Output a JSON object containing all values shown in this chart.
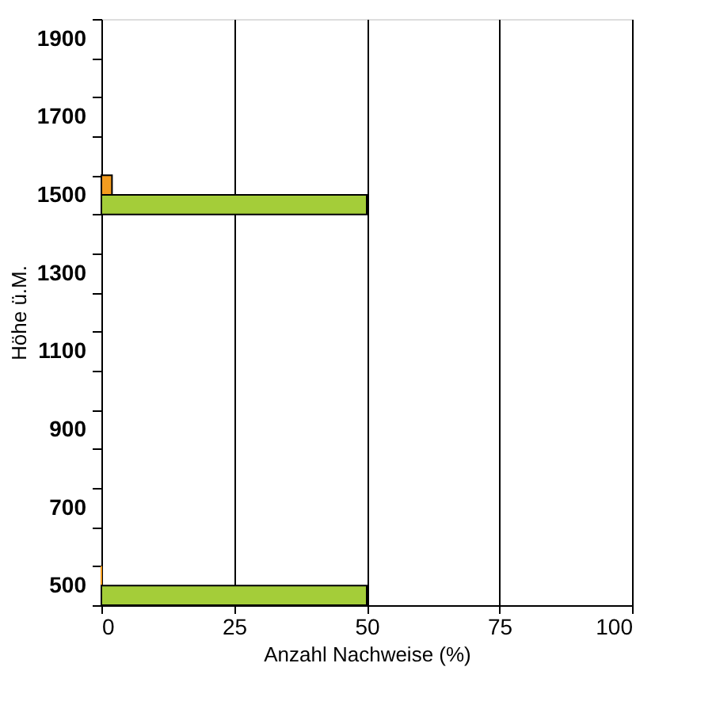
{
  "chart_data": {
    "type": "bar",
    "orientation": "horizontal",
    "xlabel": "Anzahl Nachweise (%)",
    "ylabel": "Höhe ü.M.",
    "categories": [
      "1900",
      null,
      "1700",
      null,
      "1500",
      null,
      "1300",
      null,
      "1100",
      null,
      "900",
      null,
      "700",
      null,
      "500"
    ],
    "series": [
      {
        "color": "#f39c1f",
        "values": [
          null,
          null,
          null,
          null,
          2,
          null,
          null,
          null,
          null,
          null,
          null,
          null,
          null,
          null,
          0
        ]
      },
      {
        "color": "#a4cd39",
        "values": [
          null,
          null,
          null,
          null,
          50,
          null,
          null,
          null,
          null,
          null,
          null,
          null,
          null,
          null,
          50
        ]
      }
    ],
    "xlim": [
      0,
      100
    ],
    "xticks": [
      0,
      25,
      50,
      75,
      100
    ],
    "grid": "x"
  }
}
